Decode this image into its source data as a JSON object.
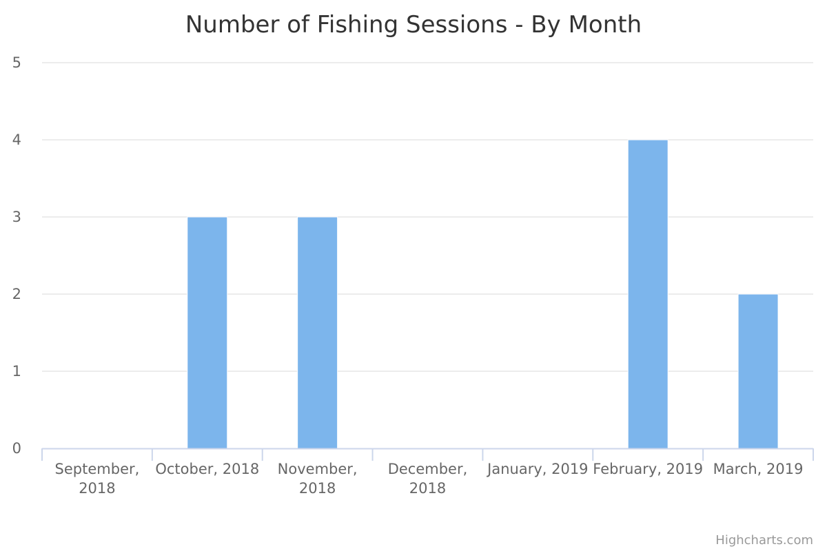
{
  "chart_data": {
    "type": "bar",
    "title": "Number of Fishing Sessions - By Month",
    "categories": [
      "September, 2018",
      "October, 2018",
      "November, 2018",
      "December, 2018",
      "January, 2019",
      "February, 2019",
      "March, 2019"
    ],
    "category_lines": [
      [
        "September,",
        "2018"
      ],
      [
        "October, 2018"
      ],
      [
        "November,",
        "2018"
      ],
      [
        "December,",
        "2018"
      ],
      [
        "January, 2019"
      ],
      [
        "February, 2019"
      ],
      [
        "March, 2019"
      ]
    ],
    "values": [
      0,
      3,
      3,
      0,
      0,
      4,
      2
    ],
    "yticks": [
      "0",
      "1",
      "2",
      "3",
      "4",
      "5"
    ],
    "ylim": [
      0,
      5
    ],
    "grid": true,
    "legend": "none",
    "bar_color": "#7cb5ec",
    "grid_color": "#e6e6e6",
    "axis_color": "#ccd6eb"
  },
  "credits": "Highcharts.com"
}
